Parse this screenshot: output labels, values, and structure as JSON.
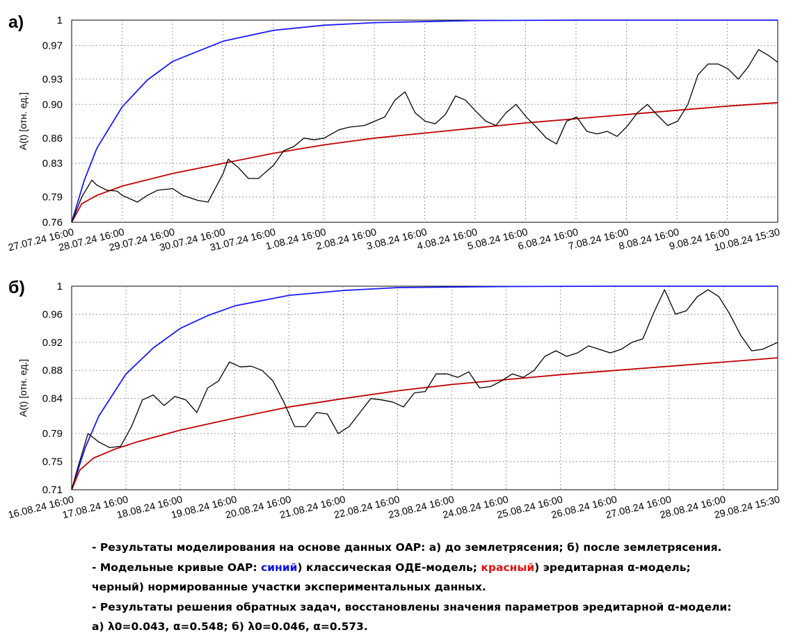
{
  "chart_data": [
    {
      "panel_label": "а)",
      "type": "line",
      "ylabel": "A(t) [отн. ед.]",
      "ylim": [
        0.76,
        1.0
      ],
      "y_ticks": [
        0.76,
        0.79,
        0.83,
        0.86,
        0.9,
        0.93,
        0.97,
        1
      ],
      "y_tick_labels": [
        "0.76",
        "0.79",
        "0.83",
        "0.86",
        "0.90",
        "0.93",
        "0.97",
        "1"
      ],
      "x_tick_labels": [
        "27.07.24 16:00",
        "28.07.24 16:00",
        "29.07.24 16:00",
        "30.07.24 16:00",
        "31.07.24 16:00",
        "1.08.24 16:00",
        "2.08.24 16:00",
        "3.08.24 16:00",
        "4.08.24 16:00",
        "5.08.24 16:00",
        "6.08.24 16:00",
        "7.08.24 16:00",
        "8.08.24 16:00",
        "9.08.24 16:00",
        "10.08.24 15:30"
      ],
      "xlim": [
        0,
        13.98
      ],
      "grid": true,
      "series": [
        {
          "name": "синий",
          "color": "#1a1aff",
          "x": [
            0,
            0.25,
            0.5,
            1,
            1.5,
            2,
            3,
            4,
            5,
            6,
            8,
            10,
            13.98
          ],
          "y": [
            0.76,
            0.81,
            0.848,
            0.897,
            0.929,
            0.951,
            0.975,
            0.988,
            0.994,
            0.997,
            0.9995,
            1.0,
            1.0
          ]
        },
        {
          "name": "красный",
          "color": "#c00000",
          "x": [
            0,
            0.2,
            0.5,
            1,
            2,
            3,
            4,
            5,
            6,
            7,
            8,
            9,
            10,
            11,
            12,
            13,
            13.98
          ],
          "y": [
            0.76,
            0.782,
            0.792,
            0.803,
            0.818,
            0.83,
            0.842,
            0.852,
            0.86,
            0.866,
            0.872,
            0.878,
            0.883,
            0.888,
            0.893,
            0.898,
            0.902
          ]
        },
        {
          "name": "черный",
          "color": "#000000",
          "x": [
            0,
            0.2,
            0.4,
            0.5,
            0.7,
            0.9,
            1.0,
            1.3,
            1.5,
            1.7,
            2.0,
            2.2,
            2.5,
            2.7,
            3.0,
            3.1,
            3.3,
            3.5,
            3.7,
            4.0,
            4.2,
            4.4,
            4.6,
            4.8,
            5.0,
            5.3,
            5.5,
            5.8,
            6.0,
            6.2,
            6.4,
            6.6,
            6.8,
            7.0,
            7.2,
            7.4,
            7.6,
            7.8,
            8.0,
            8.2,
            8.4,
            8.6,
            8.8,
            9.0,
            9.2,
            9.4,
            9.6,
            9.8,
            10.0,
            10.2,
            10.4,
            10.6,
            10.8,
            11.0,
            11.2,
            11.4,
            11.6,
            11.8,
            12.0,
            12.2,
            12.4,
            12.6,
            12.8,
            13.0,
            13.2,
            13.4,
            13.6,
            13.8,
            13.98
          ],
          "y": [
            0.76,
            0.79,
            0.81,
            0.804,
            0.798,
            0.797,
            0.792,
            0.784,
            0.792,
            0.798,
            0.8,
            0.792,
            0.786,
            0.784,
            0.818,
            0.835,
            0.825,
            0.812,
            0.812,
            0.828,
            0.845,
            0.85,
            0.86,
            0.858,
            0.86,
            0.87,
            0.873,
            0.875,
            0.88,
            0.885,
            0.905,
            0.915,
            0.89,
            0.88,
            0.877,
            0.888,
            0.91,
            0.905,
            0.892,
            0.88,
            0.875,
            0.89,
            0.9,
            0.885,
            0.873,
            0.86,
            0.853,
            0.88,
            0.885,
            0.868,
            0.865,
            0.868,
            0.862,
            0.874,
            0.89,
            0.9,
            0.887,
            0.875,
            0.88,
            0.9,
            0.935,
            0.948,
            0.948,
            0.942,
            0.93,
            0.945,
            0.965,
            0.958,
            0.95
          ]
        }
      ]
    },
    {
      "panel_label": "б)",
      "type": "line",
      "ylabel": "A(t) [отн. ед.]",
      "ylim": [
        0.71,
        1.0
      ],
      "y_ticks": [
        0.71,
        0.75,
        0.79,
        0.84,
        0.88,
        0.92,
        0.96,
        1
      ],
      "y_tick_labels": [
        "0.71",
        "0.75",
        "0.79",
        "0.84",
        "0.88",
        "0.92",
        "0.96",
        "1"
      ],
      "x_tick_labels": [
        "16.08.24 16:00",
        "17.08.24 16:00",
        "18.08.24 16:00",
        "19.08.24 16:00",
        "20.08.24 16:00",
        "21.08.24 16:00",
        "22.08.24 16:00",
        "23.08.24 16:00",
        "24.08.24 16:00",
        "25.08.24 16:00",
        "26.08.24 16:00",
        "27.08.24 16:00",
        "28.08.24 16:00",
        "29.08.24 15:30"
      ],
      "xlim": [
        0,
        12.98
      ],
      "grid": true,
      "series": [
        {
          "name": "синий",
          "color": "#1a1aff",
          "x": [
            0,
            0.25,
            0.5,
            1,
            1.5,
            2,
            2.5,
            3,
            4,
            5,
            6,
            8,
            10,
            12.98
          ],
          "y": [
            0.71,
            0.77,
            0.815,
            0.875,
            0.912,
            0.94,
            0.958,
            0.972,
            0.987,
            0.994,
            0.998,
            0.9995,
            1.0,
            1.0
          ]
        },
        {
          "name": "красный",
          "color": "#c00000",
          "x": [
            0,
            0.15,
            0.4,
            0.8,
            1.2,
            2,
            3,
            4,
            5,
            6,
            7,
            8,
            9,
            10,
            11,
            12,
            12.98
          ],
          "y": [
            0.71,
            0.738,
            0.755,
            0.768,
            0.778,
            0.795,
            0.812,
            0.828,
            0.84,
            0.851,
            0.86,
            0.867,
            0.874,
            0.88,
            0.886,
            0.892,
            0.898
          ]
        },
        {
          "name": "черный",
          "color": "#000000",
          "x": [
            0,
            0.1,
            0.3,
            0.5,
            0.7,
            0.9,
            1.1,
            1.3,
            1.5,
            1.7,
            1.9,
            2.1,
            2.3,
            2.5,
            2.7,
            2.9,
            3.1,
            3.3,
            3.5,
            3.7,
            3.9,
            4.1,
            4.3,
            4.5,
            4.7,
            4.9,
            5.1,
            5.3,
            5.5,
            5.7,
            5.9,
            6.1,
            6.3,
            6.5,
            6.7,
            6.9,
            7.1,
            7.3,
            7.5,
            7.7,
            7.9,
            8.1,
            8.3,
            8.5,
            8.7,
            8.9,
            9.1,
            9.3,
            9.5,
            9.7,
            9.9,
            10.1,
            10.3,
            10.5,
            10.7,
            10.9,
            11.1,
            11.3,
            11.5,
            11.7,
            11.9,
            12.1,
            12.3,
            12.5,
            12.7,
            12.98
          ],
          "y": [
            0.71,
            0.738,
            0.79,
            0.778,
            0.77,
            0.772,
            0.8,
            0.838,
            0.845,
            0.83,
            0.843,
            0.838,
            0.82,
            0.855,
            0.865,
            0.892,
            0.885,
            0.886,
            0.88,
            0.865,
            0.835,
            0.8,
            0.8,
            0.82,
            0.818,
            0.79,
            0.8,
            0.82,
            0.84,
            0.838,
            0.835,
            0.828,
            0.848,
            0.85,
            0.875,
            0.875,
            0.87,
            0.878,
            0.855,
            0.857,
            0.865,
            0.875,
            0.87,
            0.88,
            0.9,
            0.908,
            0.9,
            0.905,
            0.915,
            0.91,
            0.905,
            0.91,
            0.92,
            0.925,
            0.962,
            0.995,
            0.96,
            0.965,
            0.985,
            0.995,
            0.985,
            0.96,
            0.93,
            0.908,
            0.91,
            0.92
          ]
        }
      ]
    }
  ],
  "notes": {
    "line1": "- Результаты моделирования на основе данных ОАР: а) до землетрясения; б) после землетрясения.",
    "line2_a": "- Модельные кривые ОАР: ",
    "line2_blue": "синий",
    "line2_b": ") классическая ОДЕ-модель; ",
    "line2_red": "красный",
    "line2_c": ") эредитарная α-модель;",
    "line3": "черный) нормированные участки экспериментальных данных.",
    "line4": "- Результаты решения обратных задач, восстановлены значения параметров эредитарной α-модели:",
    "line5": " а) λ0=0.043, α=0.548; б) λ0=0.046, α=0.573."
  }
}
